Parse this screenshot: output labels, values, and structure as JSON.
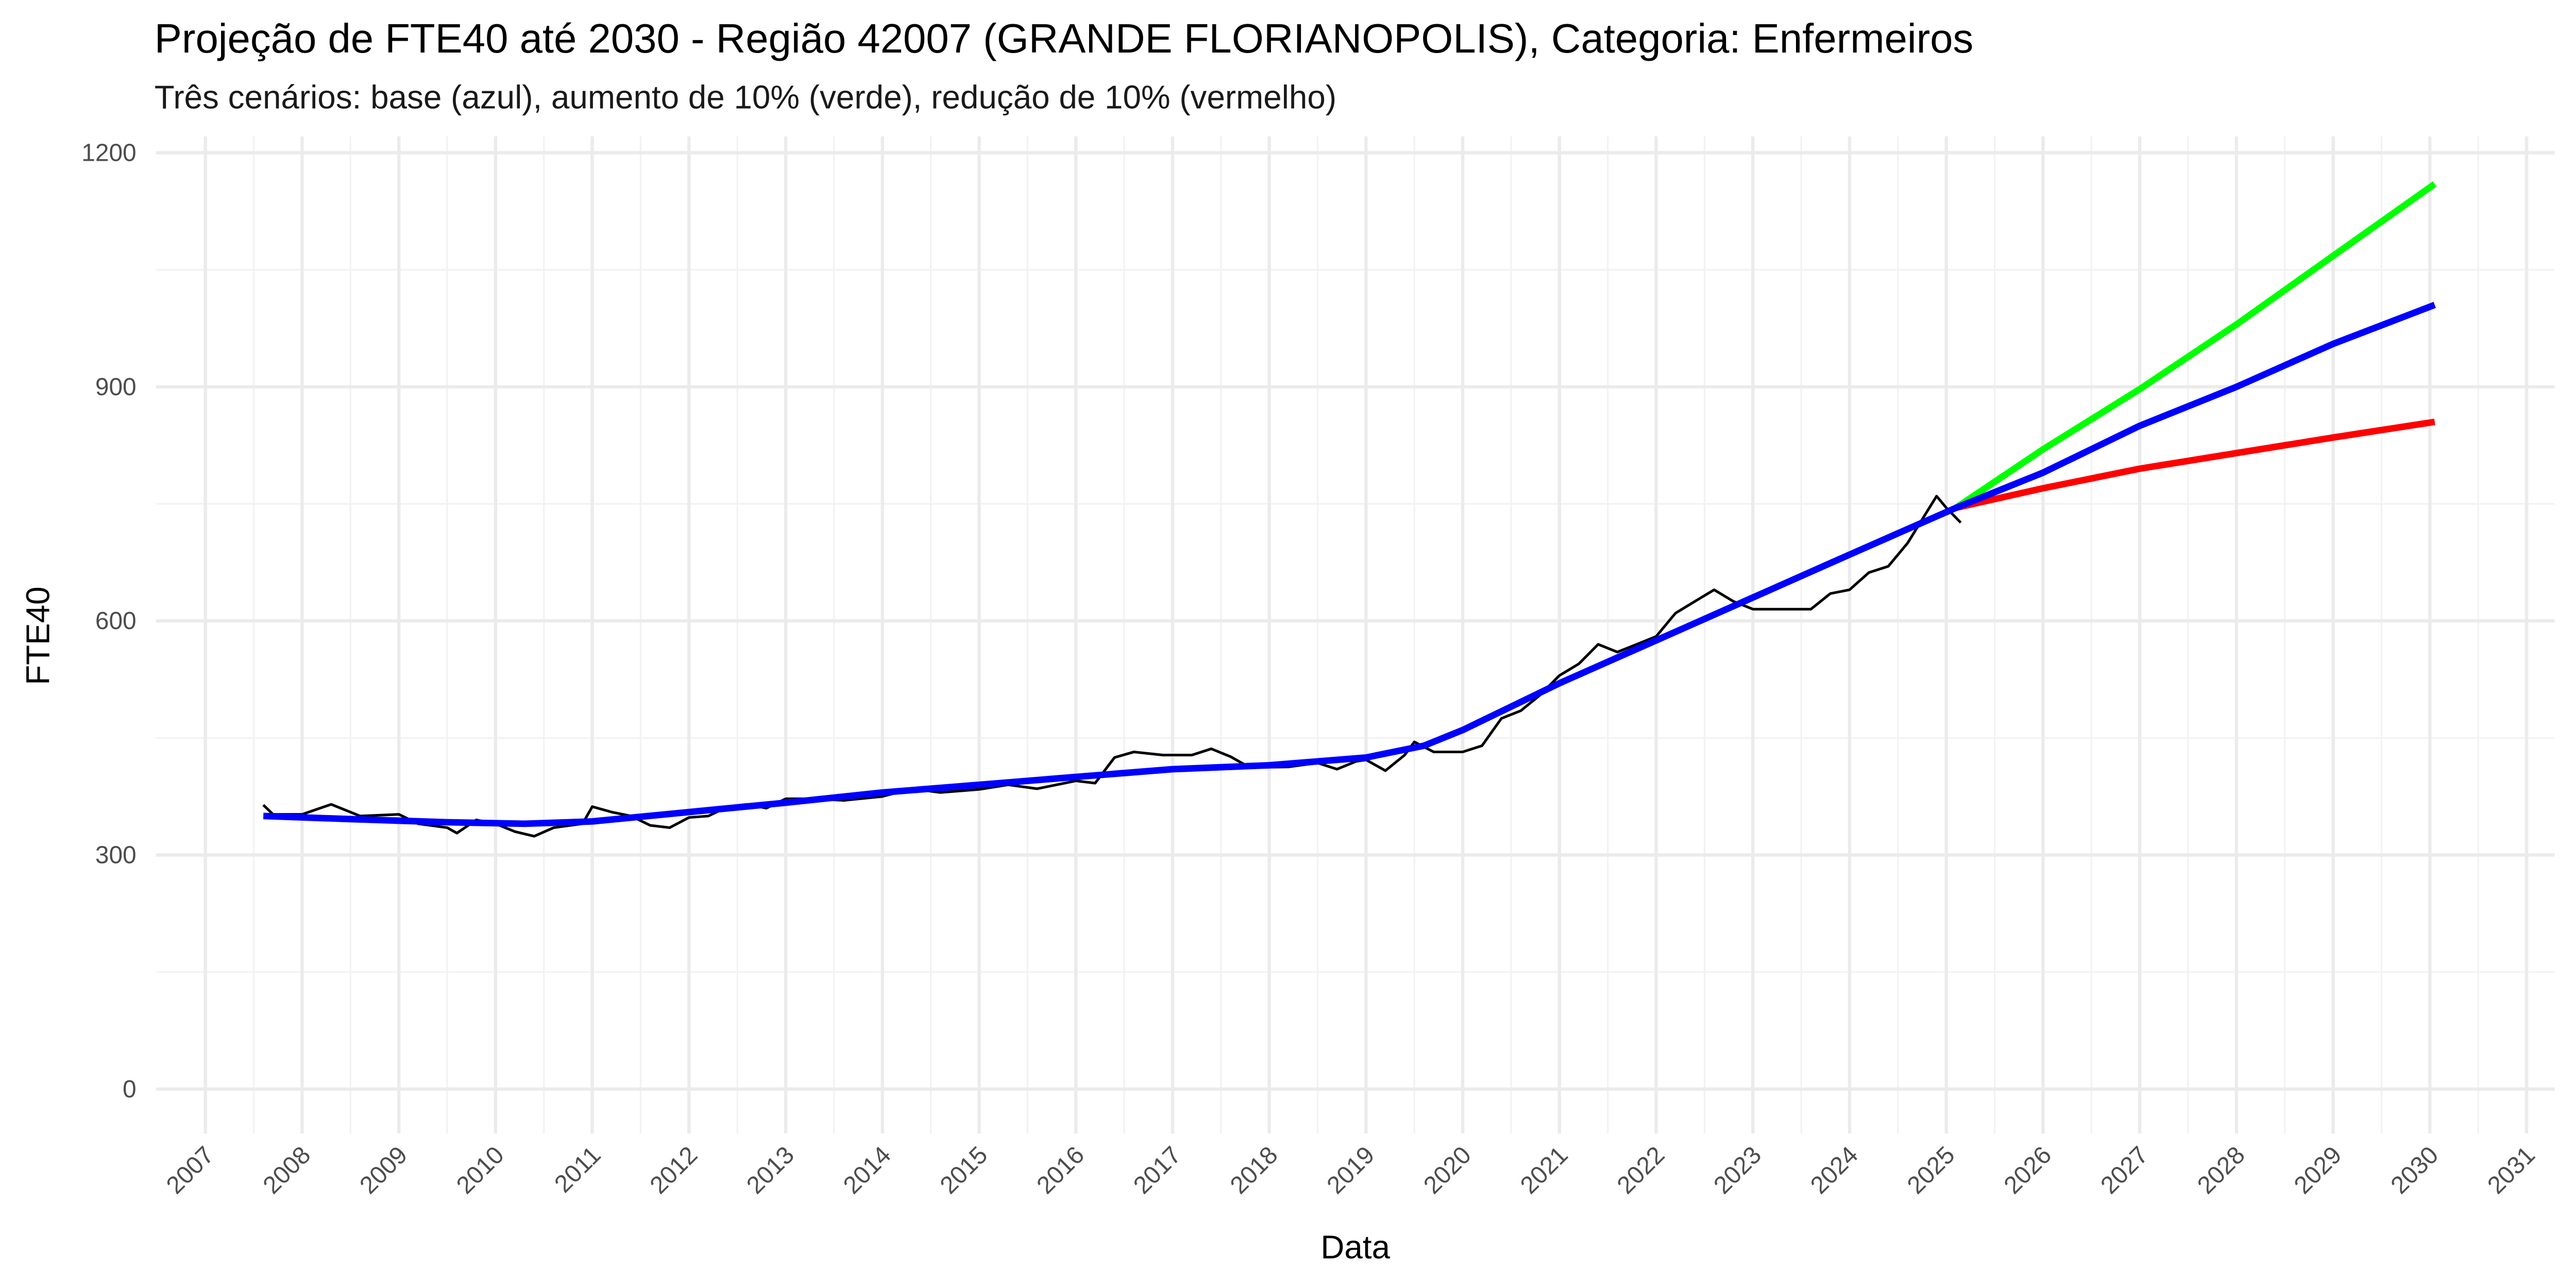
{
  "chart_data": {
    "type": "line",
    "title": "Projeção de FTE40 até 2030 - Região 42007 (GRANDE FLORIANOPOLIS), Categoria: Enfermeiros",
    "subtitle": "Três cenários: base (azul), aumento de 10% (verde), redução de 10% (vermelho)",
    "x_label": "Data",
    "y_label": "FTE40",
    "xlim": [
      2006.49,
      2031.29
    ],
    "ylim": [
      -57,
      1221
    ],
    "xticks": [
      2007,
      2008,
      2009,
      2010,
      2011,
      2012,
      2013,
      2014,
      2015,
      2016,
      2017,
      2018,
      2019,
      2020,
      2021,
      2022,
      2023,
      2024,
      2025,
      2026,
      2027,
      2028,
      2029,
      2030,
      2031
    ],
    "yticks": [
      0,
      300,
      600,
      900,
      1200
    ],
    "grid": true,
    "minor_grid": true,
    "series": [
      {
        "color": "#000000",
        "x": [
          2007.6,
          2007.7,
          2008.0,
          2008.3,
          2008.6,
          2009.0,
          2009.2,
          2009.5,
          2009.6,
          2009.8,
          2010.0,
          2010.2,
          2010.4,
          2010.6,
          2010.9,
          2011.0,
          2011.2,
          2011.4,
          2011.6,
          2011.8,
          2012.0,
          2012.2,
          2012.4,
          2012.6,
          2012.8,
          2013.0,
          2013.3,
          2013.6,
          2014.0,
          2014.3,
          2014.6,
          2015.0,
          2015.3,
          2015.6,
          2016.0,
          2016.2,
          2016.4,
          2016.6,
          2016.9,
          2017.2,
          2017.4,
          2017.6,
          2017.8,
          2018.2,
          2018.5,
          2018.7,
          2018.9,
          2019.0,
          2019.2,
          2019.4,
          2019.5,
          2019.7,
          2020.0,
          2020.2,
          2020.4,
          2020.6,
          2020.8,
          2021.0,
          2021.2,
          2021.4,
          2021.6,
          2021.8,
          2022.0,
          2022.2,
          2022.4,
          2022.6,
          2022.8,
          2023.0,
          2023.3,
          2023.6,
          2023.8,
          2024.0,
          2024.2,
          2024.4,
          2024.6,
          2024.8,
          2024.9,
          2025.0,
          2025.15
        ],
        "values": [
          364,
          352,
          352,
          365,
          350,
          352,
          340,
          335,
          328,
          345,
          340,
          330,
          324,
          335,
          340,
          362,
          355,
          350,
          338,
          335,
          348,
          350,
          362,
          365,
          360,
          372,
          372,
          370,
          375,
          385,
          380,
          384,
          390,
          385,
          395,
          392,
          425,
          432,
          428,
          428,
          436,
          426,
          412,
          413,
          418,
          410,
          420,
          422,
          408,
          428,
          445,
          432,
          432,
          440,
          475,
          485,
          505,
          530,
          545,
          570,
          560,
          570,
          580,
          610,
          625,
          640,
          625,
          615,
          615,
          615,
          635,
          640,
          662,
          670,
          700,
          740,
          760,
          745,
          726
        ]
      },
      {
        "color": "#00ff00",
        "x": [
          2025.1,
          2026,
          2027,
          2028,
          2029,
          2030.05
        ],
        "values": [
          745,
          820,
          897,
          980,
          1068,
          1160
        ]
      },
      {
        "color": "#ff0000",
        "x": [
          2025.1,
          2026,
          2027,
          2028,
          2029,
          2030.05
        ],
        "values": [
          745,
          770,
          795,
          815,
          835,
          855
        ]
      },
      {
        "color": "#0000ff",
        "x": [
          2007.6,
          2008.5,
          2009.5,
          2010.3,
          2011,
          2012,
          2013,
          2014,
          2015,
          2016,
          2017,
          2018,
          2019,
          2019.6,
          2020,
          2021,
          2022,
          2023,
          2024,
          2025.1,
          2026,
          2027,
          2028,
          2029,
          2030.05
        ],
        "values": [
          350,
          346,
          342,
          340,
          343,
          355,
          367,
          380,
          390,
          400,
          410,
          415,
          425,
          440,
          460,
          520,
          575,
          630,
          685,
          745,
          790,
          850,
          900,
          955,
          1005
        ]
      }
    ]
  }
}
